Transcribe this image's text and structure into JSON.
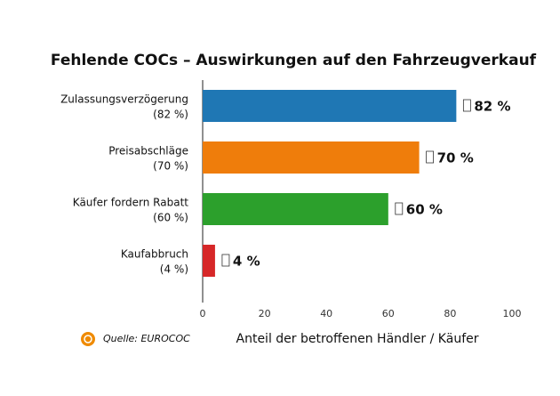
{
  "chart_data": {
    "type": "barh",
    "title": "Fehlende COCs – Auswirkungen auf den Fahrzeugverkauf",
    "categories": [
      "Zulassungsverzögerung",
      "Preisabschläge",
      "Käufer fordern Rabatt",
      "Kaufabbruch"
    ],
    "category_sublabels": [
      "(82 %)",
      "(70 %)",
      "(60 %)",
      "(4 %)"
    ],
    "values": [
      82,
      70,
      60,
      4
    ],
    "value_labels": [
      "82 %",
      "70 %",
      "60 %",
      "4 %"
    ],
    "colors": [
      "#1f77b4",
      "#ef7d0b",
      "#2ca02c",
      "#d62728"
    ],
    "xlim": [
      0,
      100
    ],
    "xticks": [
      0,
      20,
      40,
      60,
      80,
      100
    ],
    "xlabel": "Anteil der betroffenen Händler / Käufer",
    "source": "Quelle: EUROCOC",
    "grid": false
  }
}
